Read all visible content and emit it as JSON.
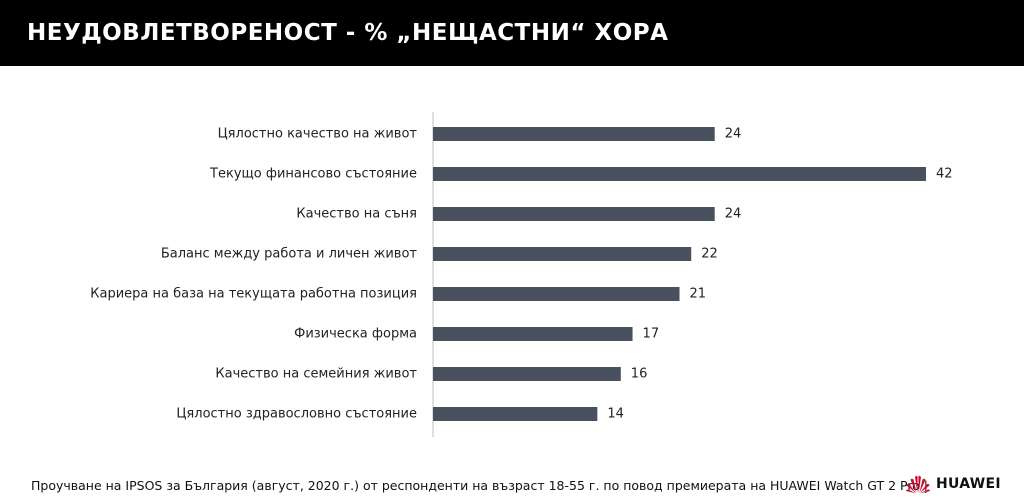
{
  "header": {
    "title": "НЕУДОВЛЕТВОРЕНОСТ - % „НЕЩАСТНИ“ ХОРА"
  },
  "colors": {
    "bar": "#49505e",
    "axis": "#bfbfbf",
    "header_bg": "#000000",
    "logo": "#cf0a2c"
  },
  "chart_data": {
    "type": "bar",
    "orientation": "horizontal",
    "categories": [
      "Цялостно качество на живот",
      "Текущо финансово състояние",
      "Качество на съня",
      "Баланс между работа и личен живот",
      "Кариера на база на текущата работна позиция",
      "Физическа форма",
      "Качество на семейния живот",
      "Цялостно здравословно състояние"
    ],
    "values": [
      24,
      42,
      24,
      22,
      21,
      17,
      16,
      14
    ],
    "xlim": [
      0,
      42
    ],
    "grid": false,
    "legend": "none"
  },
  "footer": {
    "source_text": "Проучване на IPSOS за България (август, 2020 г.) от респонденти на възраст 18-55 г. по повод премиерата на HUAWEI Watch GT 2 Pro  |",
    "logo_text": "HUAWEI",
    "logo_icon": "huawei-flower-icon"
  }
}
